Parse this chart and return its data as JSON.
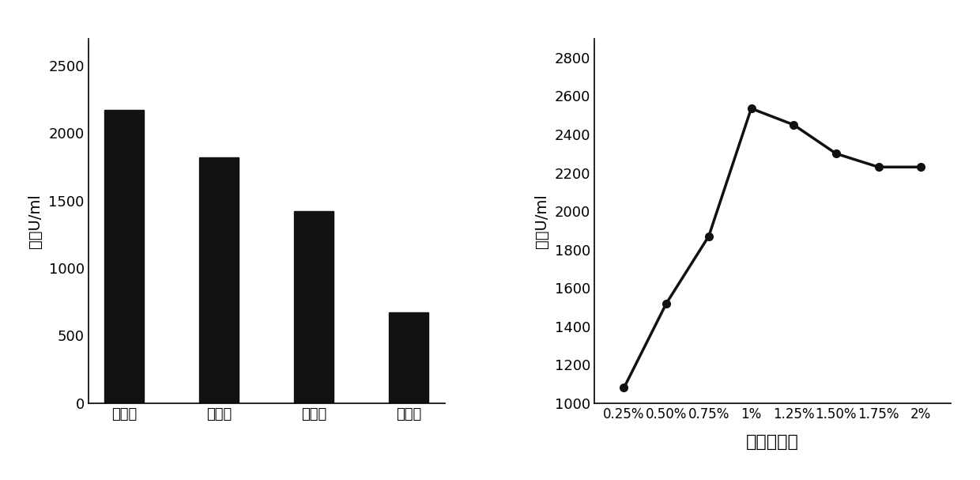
{
  "bar_categories": [
    "干酪素",
    "蛋白粉",
    "硫酸铵",
    "氯化铵"
  ],
  "bar_values": [
    2170,
    1820,
    1420,
    670
  ],
  "bar_color": "#111111",
  "bar_ylabel": "酶活U/ml",
  "bar_ylim": [
    0,
    2700
  ],
  "bar_yticks": [
    0,
    500,
    1000,
    1500,
    2000,
    2500
  ],
  "line_x_labels": [
    "0.25%",
    "0.50%",
    "0.75%",
    "1%",
    "1.25%",
    "1.50%",
    "1.75%",
    "2%"
  ],
  "line_x_values": [
    1,
    2,
    3,
    4,
    5,
    6,
    7,
    8
  ],
  "line_y_values": [
    1080,
    1520,
    1870,
    2535,
    2450,
    2300,
    2230,
    2230
  ],
  "line_color": "#111111",
  "line_ylabel": "酶活U/ml",
  "line_xlabel": "干酪素含量",
  "line_ylim": [
    1000,
    2900
  ],
  "line_yticks": [
    1000,
    1200,
    1400,
    1600,
    1800,
    2000,
    2200,
    2400,
    2600,
    2800
  ],
  "background_color": "#ffffff",
  "text_color": "#000000",
  "tick_font_size": 13,
  "label_font_size": 14
}
